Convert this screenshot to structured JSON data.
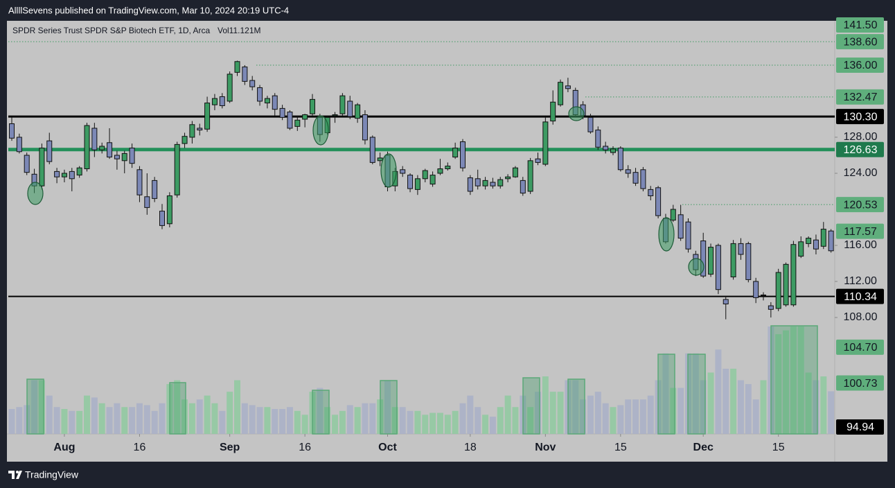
{
  "header": {
    "text": "AllllSevens published on TradingView.com, Mar 10, 2024 20:19 UTC-4"
  },
  "footer": {
    "brand": "TradingView"
  },
  "chart_data": {
    "type": "candlestick",
    "title": "SPDR Series Trust SPDR S&P Biotech ETF, 1D, Arca",
    "volume_legend": "Vol11.121M",
    "categories": [
      null,
      null,
      null,
      null,
      null,
      null,
      null,
      "Aug",
      null,
      null,
      null,
      null,
      null,
      null,
      null,
      null,
      null,
      "16",
      null,
      null,
      null,
      null,
      null,
      null,
      null,
      null,
      null,
      null,
      null,
      "Sep",
      null,
      null,
      null,
      null,
      null,
      null,
      null,
      null,
      null,
      "16",
      null,
      null,
      null,
      null,
      null,
      null,
      null,
      null,
      null,
      null,
      "Oct",
      null,
      null,
      null,
      null,
      null,
      null,
      null,
      null,
      null,
      null,
      "18",
      null,
      null,
      null,
      null,
      null,
      null,
      null,
      null,
      null,
      "Nov",
      null,
      null,
      null,
      null,
      null,
      null,
      null,
      null,
      null,
      "15",
      null,
      null,
      null,
      null,
      null,
      null,
      null,
      null,
      null,
      null,
      "Dec",
      null,
      null,
      null,
      null,
      null,
      null,
      null,
      null,
      null,
      "15",
      null,
      null,
      null,
      null,
      null,
      null,
      null
    ],
    "open": [
      129.5,
      128.0,
      126.0,
      123.9,
      122.6,
      127.6,
      124.2,
      123.6,
      124.2,
      123.8,
      124.5,
      129.0,
      126.6,
      127.4,
      126.0,
      125.4,
      126.8,
      124.4,
      121.4,
      123.2,
      119.8,
      118.4,
      121.6,
      127.3,
      128.0,
      129.0,
      128.9,
      131.6,
      132.5,
      132.0,
      135.2,
      135.8,
      134.3,
      133.5,
      131.8,
      132.6,
      131.2,
      130.8,
      129.2,
      130.0,
      130.6,
      130.2,
      128.5,
      130.4,
      130.6,
      132.0,
      130.1,
      130.5,
      128.0,
      125.4,
      126.0,
      122.6,
      124.4,
      123.8,
      122.2,
      123.4,
      122.8,
      124.0,
      124.5,
      125.8,
      127.5,
      123.5,
      123.4,
      122.6,
      123.0,
      122.6,
      123.4,
      123.6,
      123.2,
      122.0,
      125.6,
      125.0,
      129.8,
      131.6,
      133.7,
      133.2,
      131.6,
      130.2,
      128.8,
      127.0,
      126.3,
      126.8,
      124.4,
      124.1,
      124.4,
      122.2,
      122.4,
      119.0,
      118.8,
      119.4,
      118.6,
      115.0,
      116.5,
      112.8,
      116.0,
      110.0,
      112.5,
      116.2,
      116.2,
      112.0,
      110.5,
      109.3,
      109.0,
      109.4,
      109.4,
      114.8,
      116.2,
      116.6,
      115.9,
      117.6
    ],
    "high": [
      130.2,
      128.4,
      126.3,
      124.5,
      127.3,
      128.5,
      124.6,
      124.4,
      124.6,
      124.8,
      129.6,
      129.6,
      127.4,
      129.0,
      126.5,
      126.5,
      127.3,
      124.8,
      124.0,
      123.6,
      120.6,
      121.9,
      127.5,
      128.5,
      129.8,
      129.5,
      132.5,
      132.8,
      132.9,
      135.3,
      136.5,
      136.0,
      134.8,
      133.8,
      132.6,
      132.9,
      131.6,
      131.0,
      130.4,
      130.6,
      132.8,
      130.6,
      130.4,
      130.8,
      132.9,
      132.6,
      131.8,
      131.0,
      128.2,
      126.3,
      126.4,
      124.6,
      124.8,
      124.0,
      123.8,
      124.5,
      124.2,
      125.6,
      125.2,
      127.4,
      127.8,
      123.8,
      124.4,
      123.6,
      123.5,
      123.6,
      123.9,
      124.8,
      123.6,
      125.7,
      126.3,
      130.3,
      133.2,
      134.4,
      134.6,
      133.5,
      132.0,
      130.6,
      129.2,
      127.5,
      127.0,
      127.0,
      124.9,
      124.6,
      124.7,
      122.6,
      122.6,
      119.5,
      120.5,
      120.5,
      119.0,
      115.4,
      117.4,
      116.2,
      116.2,
      110.4,
      116.6,
      116.8,
      116.4,
      112.4,
      110.8,
      109.7,
      113.4,
      114.1,
      116.5,
      117.0,
      117.0,
      117.2,
      118.6,
      117.8
    ],
    "low": [
      127.6,
      126.2,
      123.8,
      121.8,
      122.2,
      125.0,
      122.9,
      123.0,
      122.0,
      123.5,
      124.2,
      125.8,
      126.2,
      125.6,
      124.4,
      124.0,
      124.6,
      120.8,
      119.4,
      120.8,
      117.8,
      118.0,
      121.3,
      126.8,
      127.3,
      128.2,
      128.6,
      131.0,
      131.2,
      131.8,
      134.8,
      133.8,
      133.2,
      131.5,
      131.2,
      130.4,
      129.9,
      128.8,
      128.7,
      129.1,
      130.3,
      127.5,
      128.3,
      129.6,
      130.4,
      130.0,
      129.6,
      127.2,
      125.0,
      124.8,
      122.0,
      122.0,
      123.6,
      121.9,
      121.6,
      123.0,
      122.5,
      123.8,
      124.3,
      125.6,
      124.2,
      121.6,
      122.2,
      122.2,
      122.3,
      122.3,
      123.0,
      123.5,
      121.5,
      121.7,
      124.9,
      124.8,
      129.4,
      131.4,
      133.0,
      130.3,
      130.0,
      128.4,
      126.6,
      126.2,
      126.0,
      124.2,
      123.5,
      122.6,
      122.0,
      121.0,
      119.0,
      116.2,
      118.6,
      116.5,
      115.2,
      112.6,
      112.4,
      112.5,
      110.6,
      107.8,
      112.2,
      114.4,
      111.9,
      109.6,
      109.9,
      108.0,
      108.7,
      109.2,
      109.2,
      114.6,
      115.8,
      115.0,
      115.6,
      115.2
    ],
    "close": [
      127.9,
      126.4,
      124.1,
      122.6,
      126.8,
      125.3,
      123.6,
      124.0,
      123.4,
      124.6,
      129.3,
      126.6,
      127.0,
      125.8,
      125.6,
      126.2,
      125.1,
      121.6,
      120.2,
      121.2,
      118.2,
      121.5,
      127.2,
      128.1,
      129.4,
      128.8,
      131.8,
      132.3,
      131.5,
      135.0,
      136.4,
      134.2,
      133.6,
      132.0,
      132.3,
      131.1,
      130.2,
      129.0,
      129.9,
      130.5,
      132.2,
      128.3,
      130.2,
      130.5,
      132.6,
      130.3,
      131.6,
      127.7,
      125.2,
      125.7,
      122.5,
      124.2,
      124.0,
      122.3,
      123.4,
      124.3,
      123.8,
      124.5,
      124.8,
      126.8,
      124.6,
      122.0,
      122.6,
      123.2,
      122.6,
      123.3,
      123.6,
      124.6,
      121.8,
      125.4,
      125.2,
      129.7,
      131.9,
      134.1,
      133.4,
      130.5,
      130.4,
      128.6,
      126.9,
      126.6,
      126.7,
      124.4,
      124.0,
      122.9,
      122.3,
      121.5,
      119.3,
      116.4,
      120.0,
      116.8,
      115.6,
      113.3,
      112.6,
      115.8,
      111.1,
      109.5,
      116.2,
      115.0,
      112.2,
      110.2,
      110.5,
      108.9,
      113.0,
      113.9,
      116.1,
      116.4,
      116.8,
      115.6,
      117.8,
      115.4
    ],
    "volume": [
      6.5,
      7,
      7.5,
      14,
      14,
      10,
      7,
      6.5,
      6,
      6,
      10,
      9.5,
      8,
      7,
      8,
      7,
      7,
      8,
      7.5,
      6,
      8,
      13,
      14,
      9,
      8,
      9,
      10,
      8,
      6,
      11,
      14,
      8,
      7.5,
      7,
      7,
      6.5,
      6.5,
      7,
      6,
      5,
      11,
      12,
      7,
      5,
      6,
      7.5,
      7,
      8,
      8,
      9,
      14,
      7,
      7,
      6,
      6,
      5,
      5.5,
      5.5,
      5,
      6,
      8,
      10,
      7,
      5,
      4.5,
      7,
      10,
      7,
      10,
      7,
      11,
      15,
      11,
      11,
      14,
      14,
      9,
      10,
      11,
      8,
      7,
      7.5,
      9,
      9,
      9,
      10,
      14,
      21,
      12,
      12,
      21,
      21,
      14,
      16,
      22,
      17,
      17,
      14,
      13,
      9,
      14,
      28,
      26,
      27,
      28,
      28,
      16,
      14,
      15,
      11.121
    ],
    "up_color": "#3d9b63",
    "down_color": "#7c88b6",
    "volume_up_color": "#8fcaa0",
    "volume_down_color": "#a9b0c8",
    "ylim": [
      95.08,
      140.92
    ],
    "yticks": [
      {
        "value": 108,
        "label": "108.00"
      },
      {
        "value": 112,
        "label": "112.00"
      },
      {
        "value": 116,
        "label": "116.00"
      },
      {
        "value": 124,
        "label": "124.00"
      },
      {
        "value": 128,
        "label": "128.00"
      }
    ],
    "levels": [
      {
        "value": 141.5,
        "label": "141.50",
        "box": "#5fae7c"
      },
      {
        "value": 138.6,
        "label": "138.60",
        "box": "#5fae7c",
        "line": "dotted",
        "color": "#3f9a62"
      },
      {
        "value": 136.0,
        "label": "136.00",
        "box": "#5fae7c",
        "line": "dotted",
        "color": "#3f9a62"
      },
      {
        "value": 132.47,
        "label": "132.47",
        "box": "#5fae7c",
        "line": "dotted",
        "color": "#3f9a62"
      },
      {
        "value": 130.3,
        "label": "130.30",
        "box": "#000000",
        "line": "solid",
        "color": "#000000",
        "width": 3
      },
      {
        "value": 126.63,
        "label": "126.63",
        "box": "#1f7a4d",
        "line": "solid",
        "color": "#23905a",
        "width": 5
      },
      {
        "value": 120.53,
        "label": "120.53",
        "box": "#5fae7c",
        "line": "dotted",
        "color": "#3f9a62"
      },
      {
        "value": 117.57,
        "label": "117.57",
        "box": "#5fae7c"
      },
      {
        "value": 110.34,
        "label": "110.34",
        "box": "#000000",
        "line": "solid",
        "color": "#000000",
        "width": 2
      },
      {
        "value": 104.7,
        "label": "104.70",
        "box": "#5fae7c"
      },
      {
        "value": 100.73,
        "label": "100.73",
        "box": "#5fae7c"
      },
      {
        "value": 94.94,
        "label": "94.94",
        "box": "#000000"
      }
    ]
  }
}
